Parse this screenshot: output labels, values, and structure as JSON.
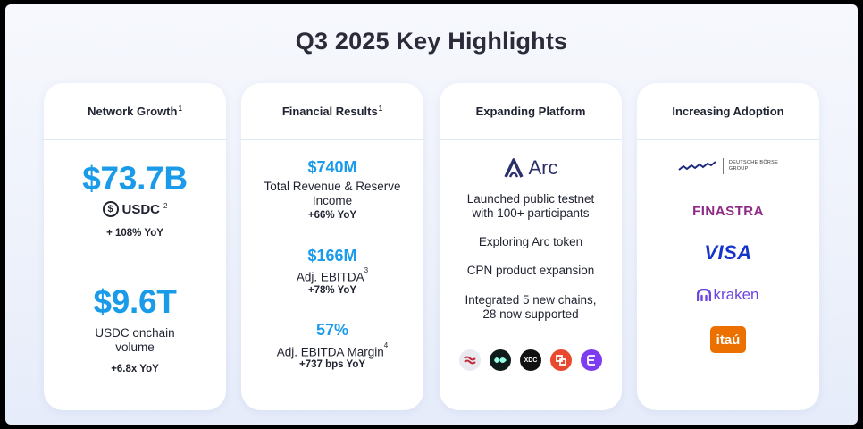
{
  "title": "Q3 2025 Key Highlights",
  "cards": {
    "network": {
      "heading": "Network Growth",
      "heading_fn": "1",
      "metric1_value": "$73.7B",
      "metric1_label": "USDC",
      "metric1_label_fn": "2",
      "metric1_yoy": "+ 108% YoY",
      "metric2_value": "$9.6T",
      "metric2_label_line1": "USDC onchain",
      "metric2_label_line2": "volume",
      "metric2_yoy": "+6.8x YoY"
    },
    "financial": {
      "heading": "Financial Results",
      "heading_fn": "1",
      "m1_value": "$740M",
      "m1_label_line1": "Total Revenue & Reserve",
      "m1_label_line2": "Income",
      "m1_yoy": "+66% YoY",
      "m2_value": "$166M",
      "m2_label": "Adj. EBITDA",
      "m2_fn": "3",
      "m2_yoy": "+78% YoY",
      "m3_value": "57%",
      "m3_label": "Adj. EBITDA Margin",
      "m3_fn": "4",
      "m3_yoy": "+737 bps YoY"
    },
    "platform": {
      "heading": "Expanding Platform",
      "arc_label": "Arc",
      "item1_line1": "Launched public testnet",
      "item1_line2": "with 100+ participants",
      "item2": "Exploring Arc token",
      "item3": "CPN product expansion",
      "item4_line1": "Integrated 5 new chains,",
      "item4_line2": "28 now supported",
      "chain_xdc": "XDC"
    },
    "adoption": {
      "heading": "Increasing Adoption",
      "db_line1": "DEUTSCHE BÖRSE",
      "db_line2": "GROUP",
      "finastra": "FINASTRA",
      "visa": "VISA",
      "kraken": "kraken",
      "itau": "itaú"
    }
  },
  "colors": {
    "accent": "#1a9bea",
    "finastra": "#8e2a86",
    "visa": "#1434cb",
    "kraken": "#6d45e0",
    "itau": "#ec7000"
  }
}
